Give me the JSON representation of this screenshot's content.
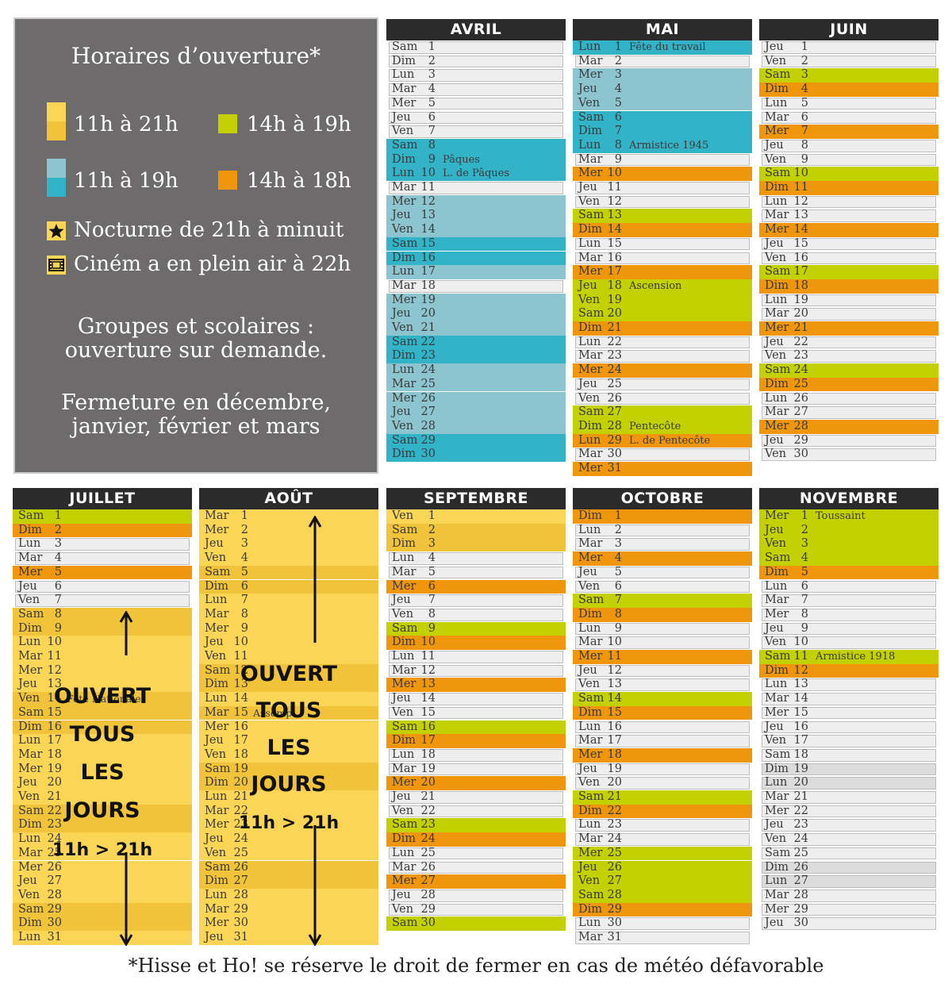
{
  "legend": {
    "title": "Horaires d’ouverture*",
    "items": [
      {
        "label": "11h à 21h",
        "swatch": [
          "#fbd556",
          "#f0c33a"
        ]
      },
      {
        "label": "14h à 19h",
        "swatch": [
          "#c3d100"
        ]
      },
      {
        "label": "11h à 19h",
        "swatch": [
          "#8cc5cf",
          "#33b3c8"
        ]
      },
      {
        "label": "14h à 18h",
        "swatch": [
          "#f0960c"
        ]
      }
    ],
    "nocturne": "Nocturne de 21h à minuit",
    "cinema": "Ciném a en plein air à 22h",
    "groupes_line1": "Groupes et scolaires :",
    "groupes_line2": "ouverture sur demande.",
    "fermeture_line1": "Fermeture en décembre,",
    "fermeture_line2": "janvier, février et mars"
  },
  "colors": {
    "y": "#fbd556",
    "yd": "#f0c33a",
    "t": "#8cc5cf",
    "b": "#33b3c8",
    "l": "#c3d100",
    "o": "#f0960c",
    "w": "#eeeeee",
    "g": "#dcdcdc"
  },
  "months": [
    {
      "name": "AVRIL",
      "days": [
        [
          "Sam",
          "1",
          "w"
        ],
        [
          "Dim",
          "2",
          "w"
        ],
        [
          "Lun",
          "3",
          "w"
        ],
        [
          "Mar",
          "4",
          "w"
        ],
        [
          "Mer",
          "5",
          "w"
        ],
        [
          "Jeu",
          "6",
          "w"
        ],
        [
          "Ven",
          "7",
          "w"
        ],
        [
          "Sam",
          "8",
          "b"
        ],
        [
          "Dim",
          "9",
          "b",
          "Pâques"
        ],
        [
          "Lun",
          "10",
          "b",
          "L. de Pâques"
        ],
        [
          "Mar",
          "11",
          "w"
        ],
        [
          "Mer",
          "12",
          "t"
        ],
        [
          "Jeu",
          "13",
          "t"
        ],
        [
          "Ven",
          "14",
          "t"
        ],
        [
          "Sam",
          "15",
          "b"
        ],
        [
          "Dim",
          "16",
          "b"
        ],
        [
          "Lun",
          "17",
          "t"
        ],
        [
          "Mar",
          "18",
          "w"
        ],
        [
          "Mer",
          "19",
          "t"
        ],
        [
          "Jeu",
          "20",
          "t"
        ],
        [
          "Ven",
          "21",
          "t"
        ],
        [
          "Sam",
          "22",
          "b"
        ],
        [
          "Dim",
          "23",
          "b"
        ],
        [
          "Lun",
          "24",
          "t"
        ],
        [
          "Mar",
          "25",
          "t"
        ],
        [
          "Mer",
          "26",
          "t"
        ],
        [
          "Jeu",
          "27",
          "t"
        ],
        [
          "Ven",
          "28",
          "t"
        ],
        [
          "Sam",
          "29",
          "b"
        ],
        [
          "Dim",
          "30",
          "b"
        ]
      ]
    },
    {
      "name": "MAI",
      "days": [
        [
          "Lun",
          "1",
          "b",
          "Fête du travail"
        ],
        [
          "Mar",
          "2",
          "w"
        ],
        [
          "Mer",
          "3",
          "t"
        ],
        [
          "Jeu",
          "4",
          "t"
        ],
        [
          "Ven",
          "5",
          "t"
        ],
        [
          "Sam",
          "6",
          "b"
        ],
        [
          "Dim",
          "7",
          "b"
        ],
        [
          "Lun",
          "8",
          "b",
          "Armistice 1945"
        ],
        [
          "Mar",
          "9",
          "w"
        ],
        [
          "Mer",
          "10",
          "o"
        ],
        [
          "Jeu",
          "11",
          "w"
        ],
        [
          "Ven",
          "12",
          "w"
        ],
        [
          "Sam",
          "13",
          "l"
        ],
        [
          "Dim",
          "14",
          "o"
        ],
        [
          "Lun",
          "15",
          "w"
        ],
        [
          "Mar",
          "16",
          "w"
        ],
        [
          "Mer",
          "17",
          "o"
        ],
        [
          "Jeu",
          "18",
          "l",
          "Ascension"
        ],
        [
          "Ven",
          "19",
          "l"
        ],
        [
          "Sam",
          "20",
          "l"
        ],
        [
          "Dim",
          "21",
          "o"
        ],
        [
          "Lun",
          "22",
          "w"
        ],
        [
          "Mar",
          "23",
          "w"
        ],
        [
          "Mer",
          "24",
          "o"
        ],
        [
          "Jeu",
          "25",
          "w"
        ],
        [
          "Ven",
          "26",
          "w"
        ],
        [
          "Sam",
          "27",
          "l"
        ],
        [
          "Dim",
          "28",
          "l",
          "Pentecôte"
        ],
        [
          "Lun",
          "29",
          "o",
          "L. de Pentecôte"
        ],
        [
          "Mar",
          "30",
          "w"
        ],
        [
          "Mer",
          "31",
          "o"
        ]
      ]
    },
    {
      "name": "JUIN",
      "days": [
        [
          "Jeu",
          "1",
          "w"
        ],
        [
          "Ven",
          "2",
          "w"
        ],
        [
          "Sam",
          "3",
          "l"
        ],
        [
          "Dim",
          "4",
          "o"
        ],
        [
          "Lun",
          "5",
          "w"
        ],
        [
          "Mar",
          "6",
          "w"
        ],
        [
          "Mer",
          "7",
          "o"
        ],
        [
          "Jeu",
          "8",
          "w"
        ],
        [
          "Ven",
          "9",
          "w"
        ],
        [
          "Sam",
          "10",
          "l"
        ],
        [
          "Dim",
          "11",
          "o"
        ],
        [
          "Lun",
          "12",
          "w"
        ],
        [
          "Mar",
          "13",
          "w"
        ],
        [
          "Mer",
          "14",
          "o"
        ],
        [
          "Jeu",
          "15",
          "w"
        ],
        [
          "Ven",
          "16",
          "w"
        ],
        [
          "Sam",
          "17",
          "l"
        ],
        [
          "Dim",
          "18",
          "o"
        ],
        [
          "Lun",
          "19",
          "w"
        ],
        [
          "Mar",
          "20",
          "w"
        ],
        [
          "Mer",
          "21",
          "o"
        ],
        [
          "Jeu",
          "22",
          "w"
        ],
        [
          "Ven",
          "23",
          "w"
        ],
        [
          "Sam",
          "24",
          "l"
        ],
        [
          "Dim",
          "25",
          "o"
        ],
        [
          "Lun",
          "26",
          "w"
        ],
        [
          "Mar",
          "27",
          "w"
        ],
        [
          "Mer",
          "28",
          "o"
        ],
        [
          "Jeu",
          "29",
          "w"
        ],
        [
          "Ven",
          "30",
          "w"
        ]
      ]
    },
    {
      "name": "JUILLET",
      "days": [
        [
          "Sam",
          "1",
          "l"
        ],
        [
          "Dim",
          "2",
          "o"
        ],
        [
          "Lun",
          "3",
          "w"
        ],
        [
          "Mar",
          "4",
          "w"
        ],
        [
          "Mer",
          "5",
          "o"
        ],
        [
          "Jeu",
          "6",
          "w"
        ],
        [
          "Ven",
          "7",
          "w"
        ],
        [
          "Sam",
          "8",
          "yd"
        ],
        [
          "Dim",
          "9",
          "yd"
        ],
        [
          "Lun",
          "10",
          "y"
        ],
        [
          "Mar",
          "11",
          "y"
        ],
        [
          "Mer",
          "12",
          "y"
        ],
        [
          "Jeu",
          "13",
          "y"
        ],
        [
          "Ven",
          "14",
          "yd",
          "Fête Nationale"
        ],
        [
          "Sam",
          "15",
          "yd"
        ],
        [
          "Dim",
          "16",
          "yd"
        ],
        [
          "Lun",
          "17",
          "y"
        ],
        [
          "Mar",
          "18",
          "y"
        ],
        [
          "Mer",
          "19",
          "y"
        ],
        [
          "Jeu",
          "20",
          "y"
        ],
        [
          "Ven",
          "21",
          "y"
        ],
        [
          "Sam",
          "22",
          "yd"
        ],
        [
          "Dim",
          "23",
          "yd"
        ],
        [
          "Lun",
          "24",
          "y"
        ],
        [
          "Mar",
          "25",
          "y"
        ],
        [
          "Mer",
          "26",
          "y"
        ],
        [
          "Jeu",
          "27",
          "y"
        ],
        [
          "Ven",
          "28",
          "y"
        ],
        [
          "Sam",
          "29",
          "yd"
        ],
        [
          "Dim",
          "30",
          "yd"
        ],
        [
          "Lun",
          "31",
          "y"
        ]
      ],
      "overlay": [
        "OUVERT",
        "TOUS",
        "LES",
        "JOURS",
        "11h > 21h"
      ]
    },
    {
      "name": "AOÛT",
      "days": [
        [
          "Mar",
          "1",
          "y"
        ],
        [
          "Mer",
          "2",
          "y"
        ],
        [
          "Jeu",
          "3",
          "y"
        ],
        [
          "Ven",
          "4",
          "y"
        ],
        [
          "Sam",
          "5",
          "yd"
        ],
        [
          "Dim",
          "6",
          "yd"
        ],
        [
          "Lun",
          "7",
          "y"
        ],
        [
          "Mar",
          "8",
          "y"
        ],
        [
          "Mer",
          "9",
          "y"
        ],
        [
          "Jeu",
          "10",
          "y"
        ],
        [
          "Ven",
          "11",
          "y"
        ],
        [
          "Sam",
          "12",
          "yd"
        ],
        [
          "Dim",
          "13",
          "yd"
        ],
        [
          "Lun",
          "14",
          "y"
        ],
        [
          "Mar",
          "15",
          "yd",
          "Assomp."
        ],
        [
          "Mer",
          "16",
          "y"
        ],
        [
          "Jeu",
          "17",
          "y"
        ],
        [
          "Ven",
          "18",
          "y"
        ],
        [
          "Sam",
          "19",
          "yd"
        ],
        [
          "Dim",
          "20",
          "yd"
        ],
        [
          "Lun",
          "21",
          "y"
        ],
        [
          "Mar",
          "22",
          "y"
        ],
        [
          "Mer",
          "23",
          "y"
        ],
        [
          "Jeu",
          "24",
          "y"
        ],
        [
          "Ven",
          "25",
          "y"
        ],
        [
          "Sam",
          "26",
          "yd"
        ],
        [
          "Dim",
          "27",
          "yd"
        ],
        [
          "Lun",
          "28",
          "y"
        ],
        [
          "Mar",
          "29",
          "y"
        ],
        [
          "Mer",
          "30",
          "y"
        ],
        [
          "Jeu",
          "31",
          "y"
        ]
      ],
      "overlay": [
        "OUVERT",
        "TOUS",
        "LES",
        "JOURS",
        "11h > 21h"
      ]
    },
    {
      "name": "SEPTEMBRE",
      "days": [
        [
          "Ven",
          "1",
          "y"
        ],
        [
          "Sam",
          "2",
          "yd"
        ],
        [
          "Dim",
          "3",
          "yd"
        ],
        [
          "Lun",
          "4",
          "w"
        ],
        [
          "Mar",
          "5",
          "w"
        ],
        [
          "Mer",
          "6",
          "o"
        ],
        [
          "Jeu",
          "7",
          "w"
        ],
        [
          "Ven",
          "8",
          "w"
        ],
        [
          "Sam",
          "9",
          "l"
        ],
        [
          "Dim",
          "10",
          "o"
        ],
        [
          "Lun",
          "11",
          "w"
        ],
        [
          "Mar",
          "12",
          "w"
        ],
        [
          "Mer",
          "13",
          "o"
        ],
        [
          "Jeu",
          "14",
          "w"
        ],
        [
          "Ven",
          "15",
          "w"
        ],
        [
          "Sam",
          "16",
          "l"
        ],
        [
          "Dim",
          "17",
          "o"
        ],
        [
          "Lun",
          "18",
          "w"
        ],
        [
          "Mar",
          "19",
          "w"
        ],
        [
          "Mer",
          "20",
          "o"
        ],
        [
          "Jeu",
          "21",
          "w"
        ],
        [
          "Ven",
          "22",
          "w"
        ],
        [
          "Sam",
          "23",
          "l"
        ],
        [
          "Dim",
          "24",
          "o"
        ],
        [
          "Lun",
          "25",
          "w"
        ],
        [
          "Mar",
          "26",
          "w"
        ],
        [
          "Mer",
          "27",
          "o"
        ],
        [
          "Jeu",
          "28",
          "w"
        ],
        [
          "Ven",
          "29",
          "w"
        ],
        [
          "Sam",
          "30",
          "l"
        ]
      ]
    },
    {
      "name": "OCTOBRE",
      "days": [
        [
          "Dim",
          "1",
          "o"
        ],
        [
          "Lun",
          "2",
          "w"
        ],
        [
          "Mar",
          "3",
          "w"
        ],
        [
          "Mer",
          "4",
          "o"
        ],
        [
          "Jeu",
          "5",
          "w"
        ],
        [
          "Ven",
          "6",
          "w"
        ],
        [
          "Sam",
          "7",
          "l"
        ],
        [
          "Dim",
          "8",
          "o"
        ],
        [
          "Lun",
          "9",
          "w"
        ],
        [
          "Mar",
          "10",
          "w"
        ],
        [
          "Mer",
          "11",
          "o"
        ],
        [
          "Jeu",
          "12",
          "w"
        ],
        [
          "Ven",
          "13",
          "w"
        ],
        [
          "Sam",
          "14",
          "l"
        ],
        [
          "Dim",
          "15",
          "o"
        ],
        [
          "Lun",
          "16",
          "w"
        ],
        [
          "Mar",
          "17",
          "w"
        ],
        [
          "Mer",
          "18",
          "o"
        ],
        [
          "Jeu",
          "19",
          "w"
        ],
        [
          "Ven",
          "20",
          "w"
        ],
        [
          "Sam",
          "21",
          "l"
        ],
        [
          "Dim",
          "22",
          "o"
        ],
        [
          "Lun",
          "23",
          "w"
        ],
        [
          "Mar",
          "24",
          "w"
        ],
        [
          "Mer",
          "25",
          "l"
        ],
        [
          "Jeu",
          "26",
          "l"
        ],
        [
          "Ven",
          "27",
          "l"
        ],
        [
          "Sam",
          "28",
          "l"
        ],
        [
          "Dim",
          "29",
          "o"
        ],
        [
          "Lun",
          "30",
          "w"
        ],
        [
          "Mar",
          "31",
          "w"
        ]
      ]
    },
    {
      "name": "NOVEMBRE",
      "days": [
        [
          "Mer",
          "1",
          "l",
          "Toussaint"
        ],
        [
          "Jeu",
          "2",
          "l"
        ],
        [
          "Ven",
          "3",
          "l"
        ],
        [
          "Sam",
          "4",
          "l"
        ],
        [
          "Dim",
          "5",
          "o"
        ],
        [
          "Lun",
          "6",
          "w"
        ],
        [
          "Mar",
          "7",
          "w"
        ],
        [
          "Mer",
          "8",
          "w"
        ],
        [
          "Jeu",
          "9",
          "w"
        ],
        [
          "Ven",
          "10",
          "w"
        ],
        [
          "Sam",
          "11",
          "l",
          "Armistice 1918"
        ],
        [
          "Dim",
          "12",
          "o"
        ],
        [
          "Lun",
          "13",
          "w"
        ],
        [
          "Mar",
          "14",
          "w"
        ],
        [
          "Mer",
          "15",
          "w"
        ],
        [
          "Jeu",
          "16",
          "w"
        ],
        [
          "Ven",
          "17",
          "w"
        ],
        [
          "Sam",
          "18",
          "w"
        ],
        [
          "Dim",
          "19",
          "g"
        ],
        [
          "Lun",
          "20",
          "g"
        ],
        [
          "Mar",
          "21",
          "w"
        ],
        [
          "Mer",
          "22",
          "w"
        ],
        [
          "Jeu",
          "23",
          "w"
        ],
        [
          "Ven",
          "24",
          "w"
        ],
        [
          "Sam",
          "25",
          "w"
        ],
        [
          "Dim",
          "26",
          "g"
        ],
        [
          "Lun",
          "27",
          "g"
        ],
        [
          "Mar",
          "28",
          "w"
        ],
        [
          "Mer",
          "29",
          "w"
        ],
        [
          "Jeu",
          "30",
          "w"
        ]
      ]
    }
  ],
  "footnote": "*Hisse et Ho! se réserve le droit de fermer en cas de météo défavorable"
}
